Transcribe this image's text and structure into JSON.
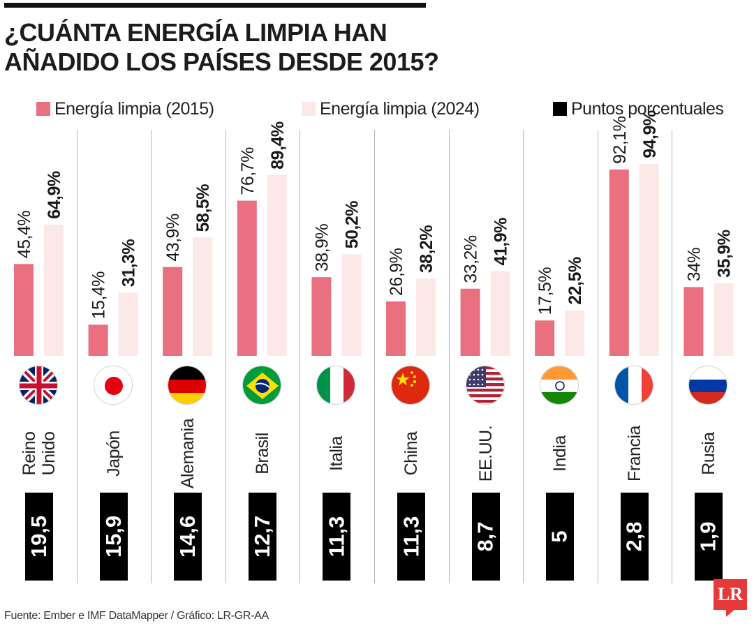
{
  "title": "¿CUÁNTA ENERGÍA LIMPIA HAN AÑADIDO LOS PAÍSES DESDE 2015?",
  "legend": [
    {
      "label": "Energía limpia (2015)",
      "color": "#e8707f"
    },
    {
      "label": "Energía limpia (2024)",
      "color": "#fde8e8"
    },
    {
      "label": "Puntos porcentuales",
      "color": "#000000"
    }
  ],
  "source": "Fuente: Ember e IMF DataMapper / Gráfico: LR-GR-AA",
  "logo_text": "LR",
  "chart_data": {
    "type": "bar",
    "categories": [
      "Reino Unido",
      "Japón",
      "Alemania",
      "Brasil",
      "Italia",
      "China",
      "EE.UU.",
      "India",
      "Francia",
      "Rusia"
    ],
    "series": [
      {
        "name": "Energía limpia (2015)",
        "values": [
          45.4,
          15.4,
          43.9,
          76.7,
          38.9,
          26.9,
          33.2,
          17.5,
          92.1,
          34
        ],
        "labels": [
          "45,4%",
          "15,4%",
          "43,9%",
          "76,7%",
          "38,9%",
          "26,9%",
          "33,2%",
          "17,5%",
          "92,1%",
          "34%"
        ],
        "color": "#e8707f"
      },
      {
        "name": "Energía limpia (2024)",
        "values": [
          64.9,
          31.3,
          58.5,
          89.4,
          50.2,
          38.2,
          41.9,
          22.5,
          94.9,
          35.9
        ],
        "labels": [
          "64,9%",
          "31,3%",
          "58,5%",
          "89,4%",
          "50,2%",
          "38,2%",
          "41,9%",
          "22,5%",
          "94,9%",
          "35,9%"
        ],
        "color": "#fde8e8"
      },
      {
        "name": "Puntos porcentuales",
        "values": [
          19.5,
          15.9,
          14.6,
          12.7,
          11.3,
          11.3,
          8.7,
          5,
          2.8,
          1.9
        ],
        "labels": [
          "19,5",
          "15,9",
          "14,6",
          "12,7",
          "11,3",
          "11,3",
          "8,7",
          "5",
          "2,8",
          "1,9"
        ],
        "color": "#000000"
      }
    ],
    "ylim": [
      0,
      100
    ],
    "flags": [
      "flag-uk-icon",
      "flag-japan-icon",
      "flag-germany-icon",
      "flag-brazil-icon",
      "flag-italy-icon",
      "flag-china-icon",
      "flag-usa-icon",
      "flag-india-icon",
      "flag-france-icon",
      "flag-russia-icon"
    ]
  }
}
